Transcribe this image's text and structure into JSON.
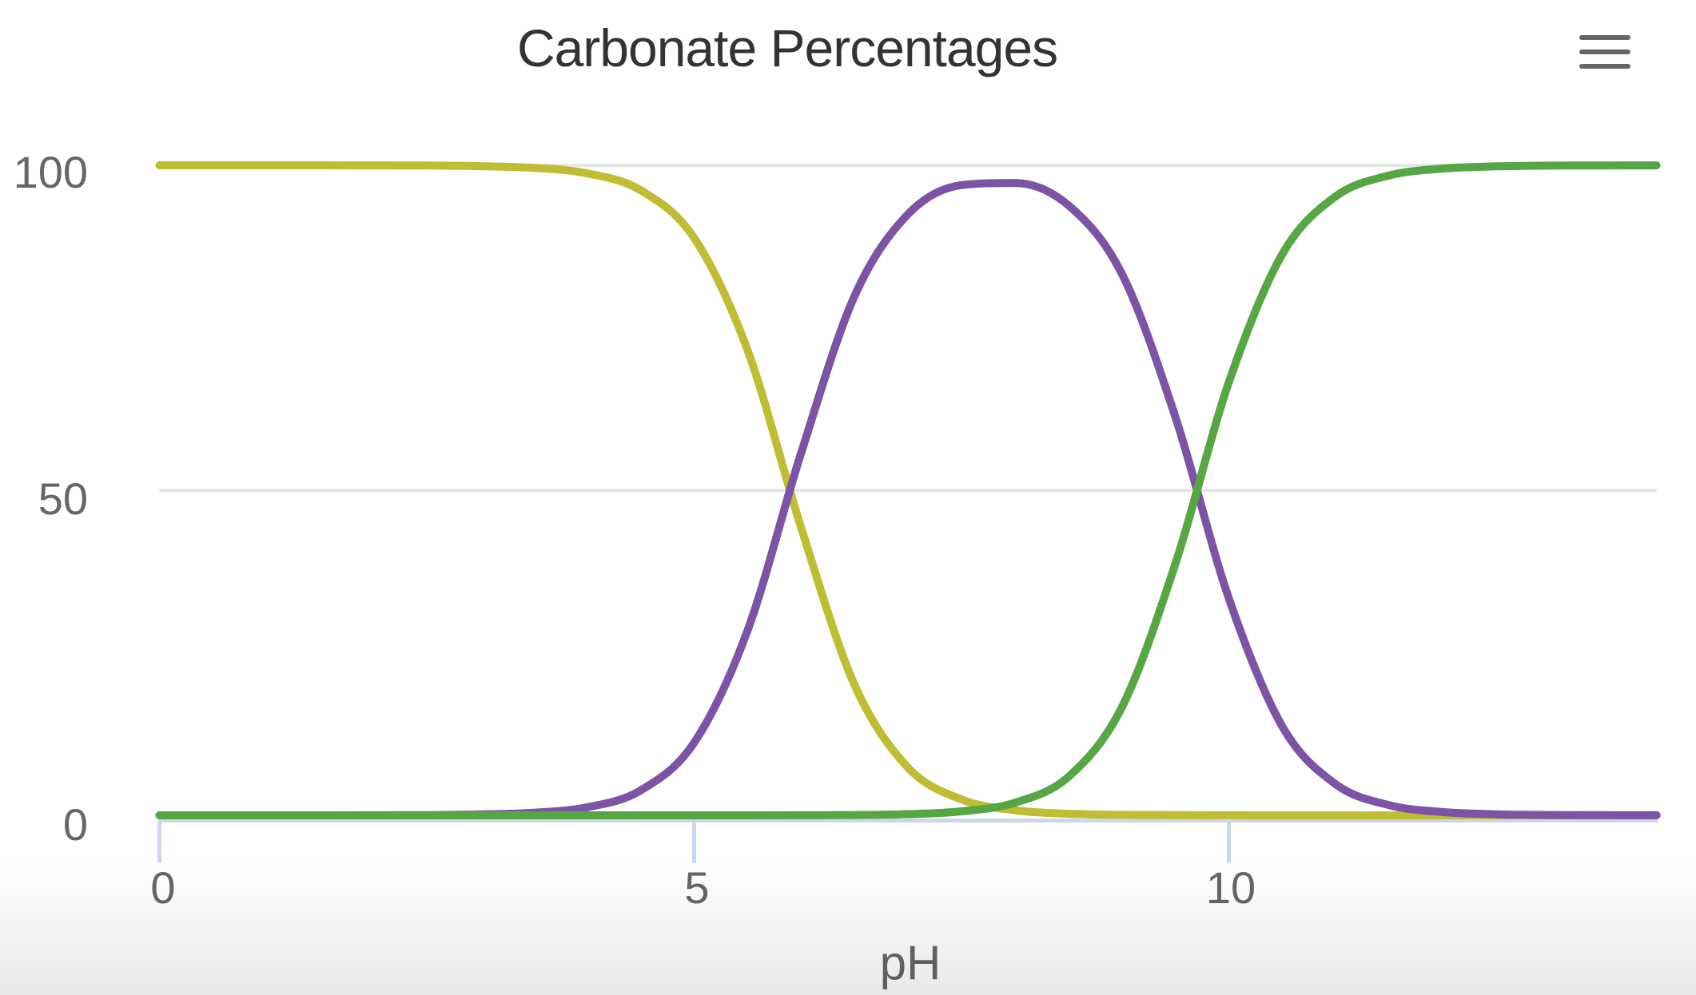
{
  "chart": {
    "title": "Carbonate Percentages",
    "title_color": "#333333",
    "background_color": "#ffffff",
    "axis_line_color": "#ccd6eb",
    "gridline_color": "#e6e6e6",
    "label_color": "#666666",
    "menu_icon": "hamburger-menu-icon"
  },
  "chart_data": {
    "type": "line",
    "title": "Carbonate Percentages",
    "xlabel": "pH",
    "ylabel": "",
    "xlim": [
      0,
      14
    ],
    "ylim": [
      0,
      100
    ],
    "grid": true,
    "legend": "none",
    "x_ticks": [
      0,
      5,
      10
    ],
    "y_ticks": [
      0,
      50,
      100
    ],
    "x_tick_labels": [
      "0",
      "5",
      "10"
    ],
    "y_tick_labels": [
      "0",
      "50",
      "100"
    ],
    "x": [
      0,
      0.5,
      1,
      1.5,
      2,
      2.5,
      3,
      3.5,
      4,
      4.5,
      5,
      5.5,
      6,
      6.5,
      7,
      7.5,
      8,
      8.5,
      9,
      9.5,
      10,
      10.5,
      11,
      11.5,
      12,
      12.5,
      13,
      13.5,
      14
    ],
    "series": [
      {
        "name": "yellow",
        "color": "#bfbd33",
        "values": [
          100,
          100,
          100,
          100,
          99.99,
          99.96,
          99.87,
          99.6,
          98.76,
          96.17,
          88.82,
          71.53,
          44.26,
          20.06,
          7.34,
          2.44,
          0.77,
          0.24,
          0.07,
          0.02,
          0.01,
          0,
          0,
          0,
          0,
          0,
          0,
          0,
          0
        ]
      },
      {
        "name": "purple",
        "color": "#7d53a6",
        "values": [
          0,
          0,
          0,
          0,
          0.01,
          0.04,
          0.13,
          0.4,
          1.24,
          3.83,
          11.18,
          28.47,
          55.73,
          79.89,
          92.48,
          96.95,
          97.29,
          93.84,
          83.3,
          61.29,
          33.39,
          13.67,
          4.77,
          1.56,
          0.5,
          0.16,
          0.05,
          0.02,
          0.01
        ]
      },
      {
        "name": "green",
        "color": "#57a644",
        "values": [
          0,
          0,
          0,
          0,
          0,
          0,
          0,
          0,
          0,
          0,
          0,
          0,
          0.01,
          0.05,
          0.18,
          0.61,
          1.94,
          5.92,
          16.63,
          38.69,
          66.61,
          86.33,
          95.23,
          98.44,
          99.5,
          99.84,
          99.95,
          99.98,
          99.99
        ]
      }
    ]
  }
}
